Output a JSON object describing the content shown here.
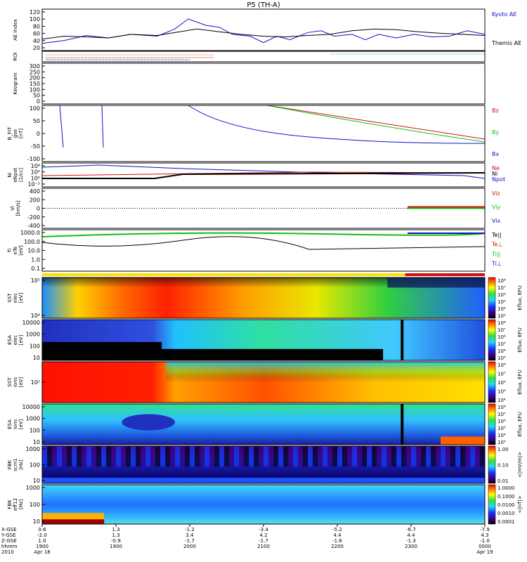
{
  "title": "P5 (TH-A)",
  "colors": {
    "blue": "#1010c8",
    "red": "#d01010",
    "green": "#10c010",
    "black": "#000000",
    "cyan": "#20c0c0",
    "orange": "#e08020"
  },
  "chart_data": [
    {
      "panel": "ae",
      "type": "line",
      "ylabel": [
        "AE Index"
      ],
      "ticks": [
        "120",
        "100",
        "80",
        "60",
        "40",
        "20"
      ],
      "legend": [
        {
          "label": "Kyoto AE",
          "color": "blue"
        },
        {
          "label": "Themis AE",
          "color": "black"
        }
      ],
      "ylim": [
        10,
        125
      ],
      "series": [
        {
          "color": "blue",
          "x": [
            0,
            0.05,
            0.1,
            0.15,
            0.2,
            0.26,
            0.3,
            0.33,
            0.37,
            0.4,
            0.43,
            0.47,
            0.5,
            0.53,
            0.56,
            0.6,
            0.63,
            0.66,
            0.7,
            0.73,
            0.76,
            0.8,
            0.84,
            0.88,
            0.92,
            0.96,
            1.0
          ],
          "y": [
            30,
            38,
            52,
            45,
            55,
            50,
            70,
            98,
            80,
            75,
            55,
            50,
            32,
            50,
            40,
            60,
            65,
            50,
            55,
            40,
            55,
            45,
            55,
            48,
            50,
            65,
            55
          ]
        },
        {
          "color": "black",
          "x": [
            0,
            0.05,
            0.1,
            0.15,
            0.2,
            0.26,
            0.3,
            0.35,
            0.4,
            0.45,
            0.5,
            0.55,
            0.6,
            0.65,
            0.7,
            0.75,
            0.8,
            0.85,
            0.9,
            0.95,
            1.0
          ],
          "y": [
            42,
            50,
            48,
            45,
            55,
            52,
            60,
            70,
            62,
            55,
            50,
            48,
            52,
            55,
            65,
            70,
            68,
            62,
            58,
            55,
            52
          ]
        }
      ]
    },
    {
      "panel": "roi",
      "type": "bands",
      "ylabel": [
        "ROI"
      ]
    },
    {
      "panel": "keogram",
      "type": "line",
      "ylabel": [
        "Keogram"
      ],
      "ticks": [
        "300",
        "250",
        "200",
        "150",
        "100",
        "50",
        "0"
      ]
    },
    {
      "panel": "bfit",
      "type": "line",
      "ylabel": [
        "B_FIT",
        "gse",
        "[nT]"
      ],
      "ticks": [
        "100",
        "50",
        "0",
        "-50",
        "-100"
      ],
      "legend": [
        {
          "label": "Bz",
          "color": "red"
        },
        {
          "label": "By",
          "color": "green"
        },
        {
          "label": "Bx",
          "color": "blue"
        }
      ],
      "ylim": [
        -110,
        110
      ]
    },
    {
      "panel": "ni",
      "type": "line",
      "ylabel": [
        "Ni",
        "eNpot",
        "[1/cc]"
      ],
      "ticks": [
        "10⁴",
        "10²",
        "10⁰",
        "10⁻²"
      ],
      "legend": [
        {
          "label": "Ne",
          "color": "red"
        },
        {
          "label": "Ni",
          "color": "black"
        },
        {
          "label": "Npot",
          "color": "blue"
        }
      ]
    },
    {
      "panel": "vi",
      "type": "line",
      "ylabel": [
        "Vi",
        "[km/s]"
      ],
      "ticks": [
        "400",
        "200",
        "0",
        "-200",
        "-400"
      ],
      "legend": [
        {
          "label": "Viz",
          "color": "red"
        },
        {
          "label": "Viy",
          "color": "green"
        },
        {
          "label": "Vix",
          "color": "blue"
        }
      ]
    },
    {
      "panel": "ti",
      "type": "line",
      "ylabel": [
        "Ti",
        "eTe",
        "[eV]"
      ],
      "ticks": [
        "1000.0",
        "100.0",
        "10.0",
        "1.0",
        "0.1"
      ],
      "legend": [
        {
          "label": "Te||",
          "color": "black"
        },
        {
          "label": "Te⊥",
          "color": "red"
        },
        {
          "label": "Ti||",
          "color": "green"
        },
        {
          "label": "Ti⊥",
          "color": "blue"
        }
      ]
    },
    {
      "panel": "sst_e",
      "type": "heatmap",
      "ylabel": [
        "SST",
        "elec",
        "[eV]"
      ],
      "ticks": [
        "10⁵",
        "10⁴"
      ]
    },
    {
      "panel": "esa_e",
      "type": "heatmap",
      "ylabel": [
        "ESA",
        "elec",
        "[eV]"
      ],
      "ticks": [
        "10000",
        "1000",
        "100",
        "10"
      ]
    },
    {
      "panel": "sst_i",
      "type": "heatmap",
      "ylabel": [
        "SST",
        "ions",
        "[eV]"
      ],
      "ticks": [
        "10⁵"
      ]
    },
    {
      "panel": "esa_i",
      "type": "heatmap",
      "ylabel": [
        "ESA",
        "ions",
        "[eV]"
      ],
      "ticks": [
        "10000",
        "1000",
        "100",
        "10"
      ]
    },
    {
      "panel": "fbk_b",
      "type": "heatmap",
      "ylabel": [
        "FBK",
        "scm1",
        "[Hz]"
      ],
      "ticks": [
        "1000",
        "100",
        "10"
      ]
    },
    {
      "panel": "fbk_e",
      "type": "heatmap",
      "ylabel": [
        "FBK",
        "eff12",
        "[Hz]"
      ],
      "ticks": [
        "1000",
        "100",
        "10"
      ]
    }
  ],
  "colorbars": [
    {
      "label": "Eflux, EFU",
      "ticks": [
        "10⁸",
        "10⁷",
        "10⁶",
        "10⁵",
        "10⁴",
        "10³"
      ]
    },
    {
      "label": "Eflux, EFU",
      "ticks": [
        "10⁸",
        "10⁷",
        "10⁶",
        "10⁵",
        "10⁴",
        "10³"
      ]
    },
    {
      "label": "Eflux, EFU",
      "ticks": [
        "10⁸",
        "10⁷",
        "10⁶",
        "10⁵",
        "10⁴"
      ]
    },
    {
      "label": "Eflux, EFU",
      "ticks": [
        "10⁸",
        "10⁷",
        "10⁶",
        "10⁵",
        "10⁴",
        "10³"
      ]
    },
    {
      "label": "<|mV/m|>",
      "ticks": [
        "1.00",
        "0.10",
        "0.01"
      ]
    },
    {
      "label": "<|nT|>",
      "ticks": [
        "1.0000",
        "0.1000",
        "0.0100",
        "0.0010",
        "0.0001"
      ]
    }
  ],
  "xaxis": {
    "row_labels": [
      "X-GSE",
      "Y-GSE",
      "Z-GSE",
      "hhmm",
      "2010"
    ],
    "columns": [
      {
        "vals": [
          "0.6",
          "-2.0",
          "1.0",
          "1900",
          "Apr 18"
        ]
      },
      {
        "vals": [
          "1.3",
          "1.3",
          "-0.9",
          "1900",
          ""
        ]
      },
      {
        "vals": [
          "-1.2",
          "3.4",
          "-1.7",
          "2000",
          ""
        ]
      },
      {
        "vals": [
          "-3.4",
          "4.2",
          "-1.7",
          "2100",
          ""
        ]
      },
      {
        "vals": [
          "-5.2",
          "4.4",
          "-1.6",
          "2200",
          ""
        ]
      },
      {
        "vals": [
          "-6.7",
          "4.4",
          "-1.3",
          "2300",
          ""
        ]
      },
      {
        "vals": [
          "-7.9",
          "4.3",
          "-1.0",
          "0000",
          "Apr 19"
        ]
      }
    ]
  }
}
